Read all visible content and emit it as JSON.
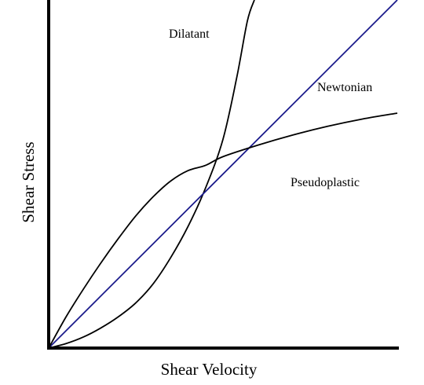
{
  "chart_data": {
    "type": "line",
    "title": "",
    "xlabel": "Shear Velocity",
    "ylabel": "Shear Stress",
    "xlim": [
      0,
      1
    ],
    "ylim": [
      0,
      1
    ],
    "grid": false,
    "legend": "none",
    "series": [
      {
        "name": "Dilatant",
        "color": "#000000",
        "points": [
          [
            0.0,
            0.0
          ],
          [
            0.05,
            0.013
          ],
          [
            0.1,
            0.032
          ],
          [
            0.15,
            0.058
          ],
          [
            0.2,
            0.09
          ],
          [
            0.25,
            0.13
          ],
          [
            0.3,
            0.185
          ],
          [
            0.35,
            0.26
          ],
          [
            0.4,
            0.35
          ],
          [
            0.45,
            0.46
          ],
          [
            0.5,
            0.6
          ],
          [
            0.54,
            0.78
          ],
          [
            0.57,
            0.94
          ],
          [
            0.59,
            1.0
          ]
        ]
      },
      {
        "name": "Newtonian",
        "color": "#1c1c8c",
        "points": [
          [
            0.0,
            0.0
          ],
          [
            1.0,
            1.0
          ]
        ]
      },
      {
        "name": "Pseudoplastic",
        "color": "#000000",
        "points": [
          [
            0.0,
            0.0
          ],
          [
            0.05,
            0.09
          ],
          [
            0.1,
            0.17
          ],
          [
            0.15,
            0.245
          ],
          [
            0.2,
            0.315
          ],
          [
            0.25,
            0.38
          ],
          [
            0.3,
            0.435
          ],
          [
            0.35,
            0.48
          ],
          [
            0.4,
            0.51
          ],
          [
            0.45,
            0.525
          ],
          [
            0.5,
            0.55
          ],
          [
            0.6,
            0.583
          ],
          [
            0.7,
            0.612
          ],
          [
            0.8,
            0.637
          ],
          [
            0.9,
            0.658
          ],
          [
            1.0,
            0.675
          ]
        ]
      }
    ]
  }
}
